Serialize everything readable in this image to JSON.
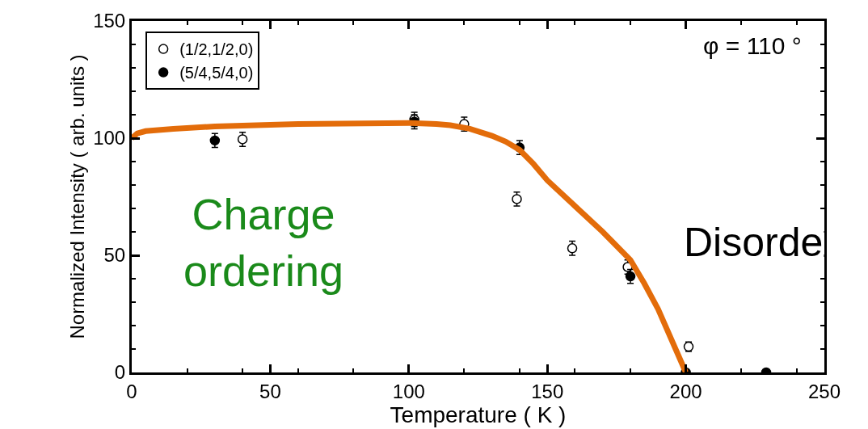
{
  "chart_data": {
    "type": "scatter",
    "xlabel": "Temperature ( K )",
    "ylabel": "Normalized Intensity ( arb. units )",
    "xlim": [
      0,
      250
    ],
    "xticks": [
      0,
      50,
      100,
      150,
      200,
      250
    ],
    "ylim": [
      0,
      150
    ],
    "yticks": [
      0,
      50,
      100,
      150
    ],
    "marker": "circle",
    "legend": "top left",
    "grid": false,
    "series": [
      {
        "name": "(1/2,1/2,0)",
        "color": "#ffffff",
        "x": [
          40,
          102,
          120,
          139,
          159,
          179,
          201
        ],
        "values": [
          99.5,
          108,
          106,
          74,
          53,
          45,
          11
        ],
        "errors": [
          3,
          3,
          3,
          3,
          3,
          3,
          2
        ]
      },
      {
        "name": "(5/4,5/4,0)",
        "color": "#000000",
        "x": [
          30,
          102,
          140,
          180,
          200,
          229
        ],
        "values": [
          99,
          107,
          96,
          41,
          0,
          0
        ],
        "errors": [
          3,
          3,
          3,
          3,
          null,
          null
        ]
      },
      {
        "type": "line",
        "marker": "none",
        "color": "#e36c0a",
        "x": [
          0,
          2,
          5,
          15,
          30,
          60,
          100,
          110,
          115,
          122,
          130,
          135,
          140,
          145,
          150,
          160,
          170,
          180,
          185,
          190,
          200
        ],
        "values": [
          100,
          102,
          103,
          104,
          105,
          106,
          106.5,
          106,
          105.5,
          104,
          101,
          98.5,
          95,
          89,
          82,
          71,
          60,
          48,
          38,
          27,
          0
        ]
      }
    ],
    "annotations": [
      "φ = 110 °",
      "Charge\nordering",
      "Disorde"
    ]
  }
}
